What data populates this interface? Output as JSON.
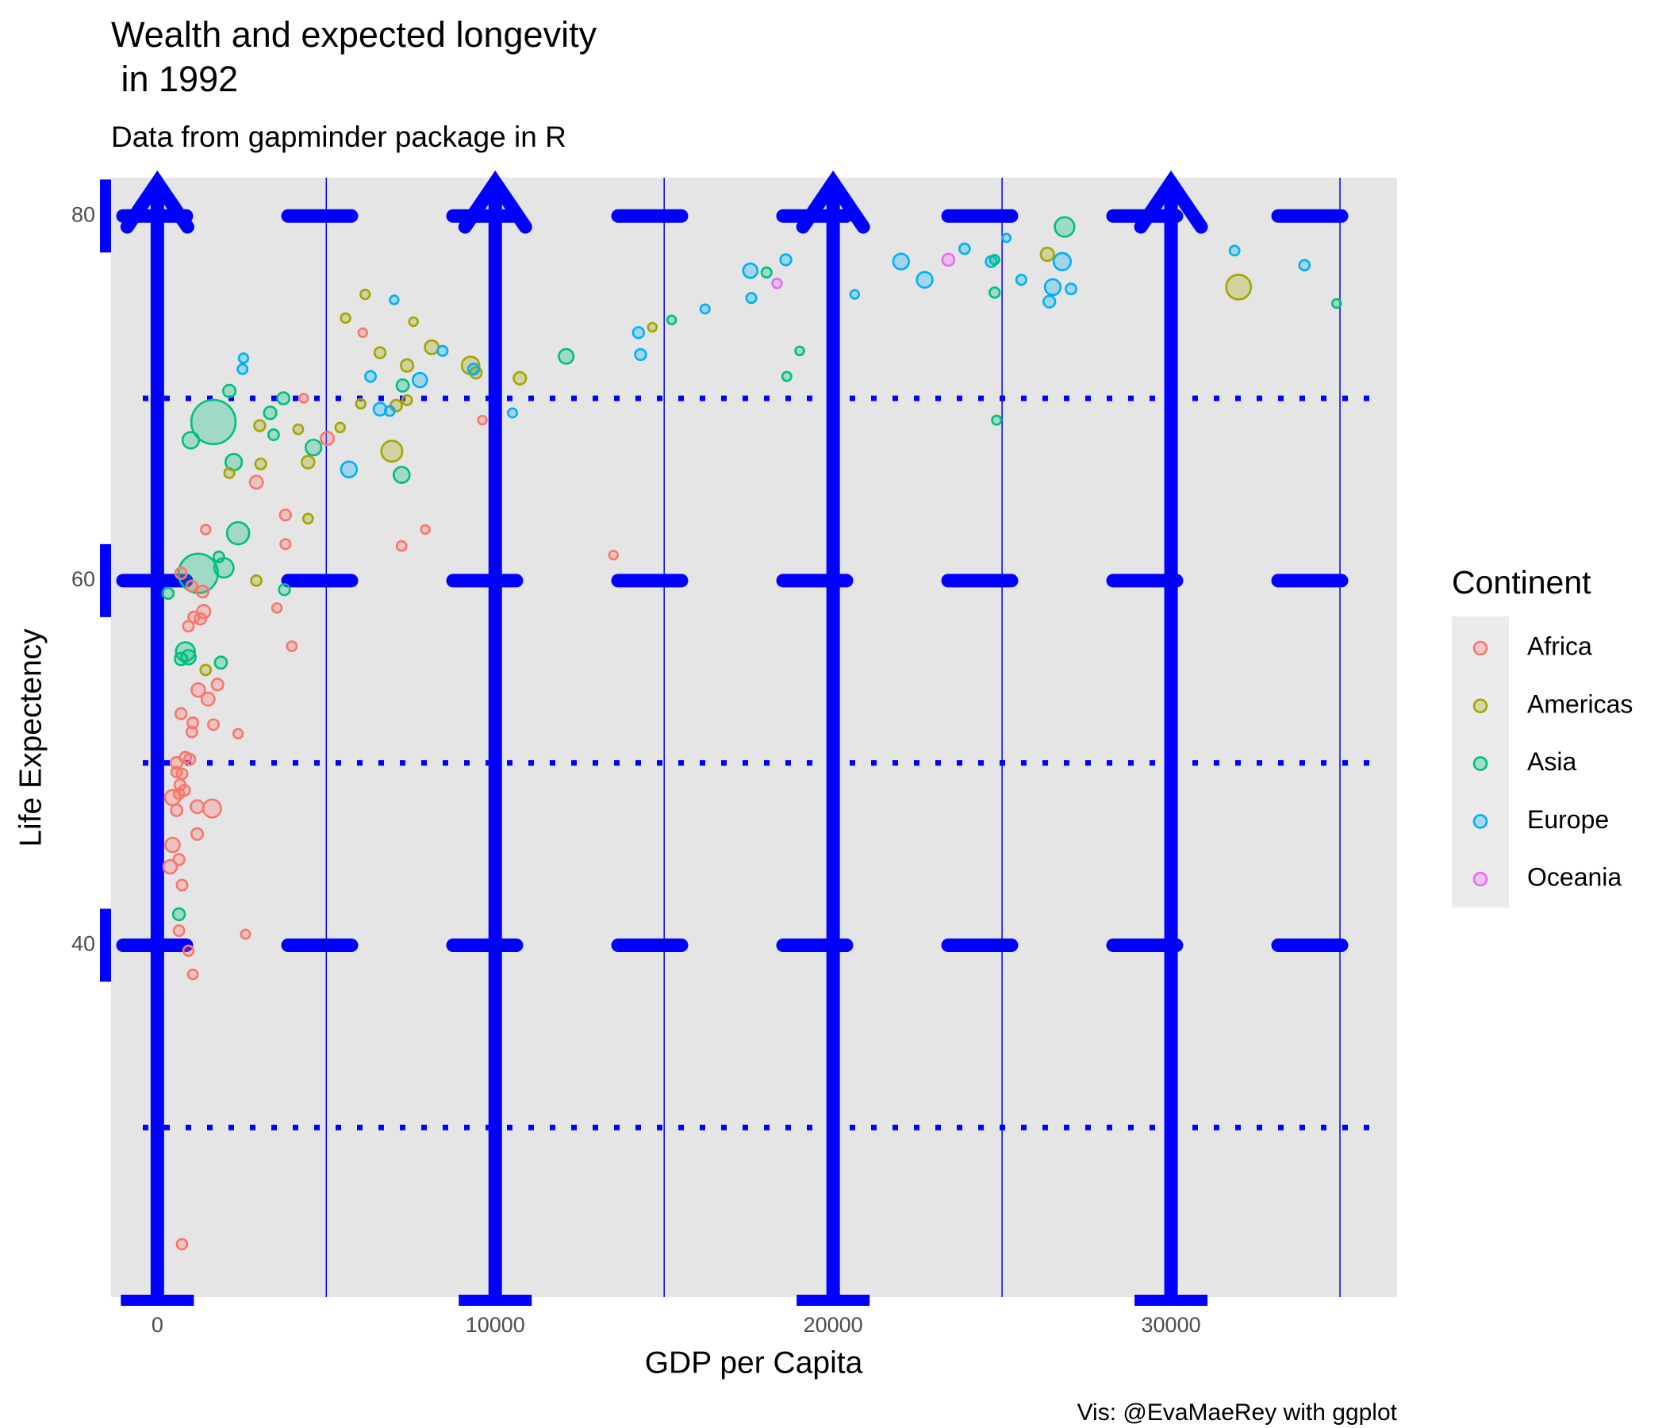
{
  "chart_data": {
    "type": "scatter",
    "title": "Wealth and expected longevity\n in 1992",
    "subtitle": "Data from gapminder package in R",
    "x_label": "GDP per Capita",
    "y_label": "Life Expectency",
    "caption": "Vis: @EvaMaeRey with ggplot",
    "legend_title": "Continent",
    "legend": "right",
    "grid": true,
    "xlim": [
      -1370,
      36690
    ],
    "ylim": [
      20.7,
      82.1
    ],
    "xticks": [
      0,
      10000,
      20000,
      30000
    ],
    "yticks": [
      40,
      60,
      80
    ],
    "xminorticks": [
      5000,
      15000,
      25000,
      35000
    ],
    "yminorticks": [
      30,
      50,
      70
    ],
    "series": [
      {
        "name": "Africa",
        "color": "#F8766D",
        "x": [
          700,
          450,
          450,
          380,
          640,
          730,
          640,
          920,
          1050,
          730,
          1620,
          1180,
          1180,
          570,
          830,
          960,
          570,
          730,
          670,
          800,
          640,
          570,
          700,
          1050,
          1020,
          1660,
          2390,
          1210,
          1500,
          1780,
          920,
          1080,
          1270,
          1370,
          1340,
          1020,
          1430,
          2930,
          3790,
          3790,
          3540,
          3980,
          4330,
          5030,
          7230,
          7930,
          9620,
          13500,
          6080,
          2610
        ],
        "y": [
          60.4,
          48.1,
          45.5,
          44.3,
          44.7,
          43.3,
          40.8,
          39.7,
          38.4,
          23.6,
          47.5,
          47.6,
          46.1,
          50.0,
          50.3,
          50.2,
          49.5,
          49.4,
          48.8,
          48.5,
          48.3,
          47.4,
          52.7,
          52.2,
          51.7,
          52.1,
          51.6,
          54.0,
          53.5,
          54.3,
          57.5,
          58.0,
          57.9,
          58.3,
          59.4,
          59.7,
          62.8,
          65.4,
          63.6,
          62.0,
          58.5,
          56.4,
          70.0,
          67.8,
          61.9,
          62.8,
          68.8,
          61.4,
          73.6,
          40.6
        ],
        "size": [
          12,
          50,
          40,
          30,
          10,
          8,
          8,
          6,
          4,
          7,
          93,
          25,
          14,
          15,
          12,
          10,
          8,
          8,
          9,
          10,
          7,
          13,
          10,
          9,
          8,
          8,
          3,
          30,
          25,
          14,
          8,
          10,
          12,
          28,
          15,
          9,
          3,
          25,
          10,
          5,
          3,
          4,
          1,
          26,
          4,
          1,
          1,
          1,
          1,
          2
        ]
      },
      {
        "name": "Americas",
        "color": "#A3A500",
        "x": [
          2930,
          1430,
          2130,
          3060,
          3030,
          4170,
          4460,
          4460,
          5410,
          6020,
          5570,
          6150,
          6590,
          6940,
          7070,
          7390,
          7390,
          7580,
          8120,
          9270,
          9430,
          10730,
          14650,
          26340,
          32000
        ],
        "y": [
          60.0,
          55.1,
          65.9,
          66.4,
          68.5,
          68.3,
          66.5,
          63.4,
          68.4,
          69.7,
          74.4,
          75.7,
          72.5,
          67.1,
          69.6,
          69.9,
          71.8,
          74.2,
          72.8,
          71.8,
          71.4,
          71.1,
          73.9,
          77.9,
          76.1
        ],
        "size": [
          7,
          7,
          5,
          9,
          10,
          4,
          22,
          4,
          3,
          3,
          3,
          3,
          10,
          155,
          13,
          4,
          20,
          1,
          33,
          88,
          13,
          20,
          1,
          28,
          256
        ]
      },
      {
        "name": "Asia",
        "color": "#00BF7D",
        "x": [
          640,
          320,
          1210,
          830,
          920,
          700,
          1880,
          1660,
          990,
          1820,
          1970,
          2390,
          2260,
          2130,
          3340,
          3440,
          3730,
          3760,
          4620,
          7230,
          7260,
          12100,
          15220,
          18030,
          18630,
          19010,
          24840,
          24780,
          24780,
          26850,
          34900
        ],
        "y": [
          41.7,
          59.3,
          60.4,
          56.1,
          55.8,
          55.7,
          55.5,
          68.7,
          67.7,
          61.3,
          60.7,
          62.6,
          66.5,
          70.4,
          69.2,
          68.0,
          70.0,
          59.5,
          67.3,
          65.8,
          70.7,
          72.3,
          74.3,
          76.9,
          71.2,
          72.6,
          68.8,
          75.8,
          77.6,
          79.4,
          75.2
        ],
        "size": [
          16,
          10,
          872,
          113,
          40,
          20,
          17,
          1165,
          69,
          8,
          120,
          185,
          67,
          20,
          21,
          8,
          17,
          10,
          57,
          60,
          18,
          44,
          1,
          5,
          2,
          1,
          2,
          6,
          3,
          124,
          1
        ]
      },
      {
        "name": "Europe",
        "color": "#00B0F6",
        "x": [
          2550,
          2520,
          5670,
          6310,
          6590,
          7010,
          6880,
          7770,
          8440,
          9360,
          10510,
          14240,
          14300,
          16210,
          17550,
          17580,
          18600,
          20640,
          22010,
          22710,
          23890,
          24680,
          25130,
          25570,
          26500,
          26400,
          26780,
          27040,
          31880,
          33950
        ],
        "y": [
          72.2,
          71.6,
          66.1,
          71.2,
          69.4,
          75.4,
          69.3,
          71.0,
          72.6,
          71.6,
          69.2,
          73.6,
          72.4,
          74.9,
          77.0,
          75.5,
          77.6,
          75.7,
          77.5,
          76.5,
          78.2,
          77.5,
          78.8,
          76.5,
          76.1,
          75.3,
          77.5,
          76.0,
          78.1,
          77.3
        ],
        "size": [
          3,
          4,
          58,
          8,
          23,
          1,
          4,
          38,
          5,
          10,
          2,
          10,
          10,
          2,
          39,
          5,
          10,
          1,
          57,
          57,
          7,
          10,
          0.3,
          5,
          58,
          15,
          80,
          8,
          4,
          7
        ]
      },
      {
        "name": "Oceania",
        "color": "#E76BF3",
        "x": [
          18340,
          23410
        ],
        "y": [
          76.3,
          77.6
        ],
        "size": [
          3,
          17
        ]
      }
    ]
  }
}
